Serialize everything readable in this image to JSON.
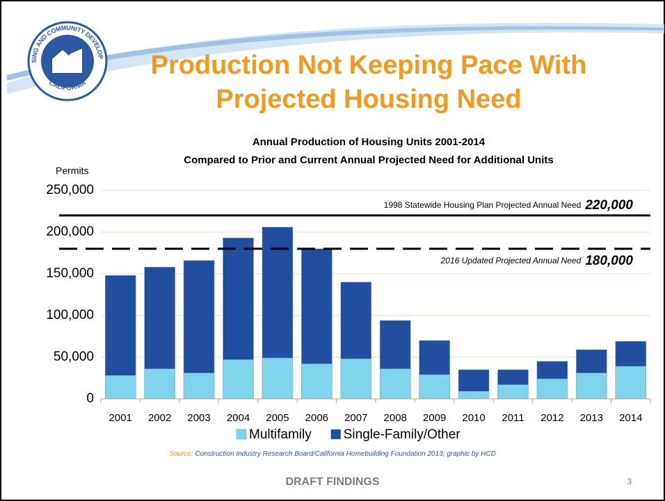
{
  "logo": {
    "top": "HOUSING AND COMMUNITY DEVELOPMENT",
    "bottom": "CALIFORNIA"
  },
  "slide": {
    "title_lines": [
      "Production Not Keeping Pace With",
      "Projected Housing Need"
    ],
    "footer": "DRAFT FINDINGS",
    "page_number": "3"
  },
  "chart_data": {
    "type": "bar",
    "stacked": true,
    "title_lines": [
      "Annual Production of Housing Units 2001-2014",
      "Compared to Prior and Current Annual Projected Need for Additional Units"
    ],
    "y_label": "Permits",
    "categories": [
      "2001",
      "2002",
      "2003",
      "2004",
      "2005",
      "2006",
      "2007",
      "2008",
      "2009",
      "2010",
      "2011",
      "2012",
      "2013",
      "2014"
    ],
    "series": [
      {
        "name": "Multifamily",
        "color": "#7fd3ea",
        "values": [
          28000,
          36000,
          31000,
          47000,
          49000,
          42000,
          48000,
          36000,
          29000,
          9000,
          17000,
          24000,
          31000,
          39000
        ]
      },
      {
        "name": "Single-Family/Other",
        "color": "#1f4f9e",
        "values": [
          120000,
          122000,
          135000,
          146000,
          157000,
          138000,
          92000,
          58000,
          41000,
          26000,
          18000,
          21000,
          28000,
          30000
        ]
      }
    ],
    "ylim": [
      0,
      250000
    ],
    "yticks": [
      0,
      {
        "value": 50000,
        "label": "50,000"
      },
      {
        "value": 100000,
        "label": "100,000"
      },
      {
        "value": 150000,
        "label": "150,000"
      },
      {
        "value": 200000,
        "label": "200,000"
      },
      {
        "value": 250000,
        "label": "250,000"
      }
    ],
    "grid": true,
    "reference_lines": [
      {
        "value": 220000,
        "text": "1998 Statewide Housing Plan Projected Annual Need",
        "label": "220,000",
        "style": "solid"
      },
      {
        "value": 180000,
        "text": "2016 Updated Projected Annual Need",
        "label": "180,000",
        "style": "dashed"
      }
    ],
    "legend": "bottom",
    "source": {
      "label": "Source",
      "text": ": Construction Industry Research Board/California Homebuilding Foundation 2013; graphic by HCD"
    }
  }
}
